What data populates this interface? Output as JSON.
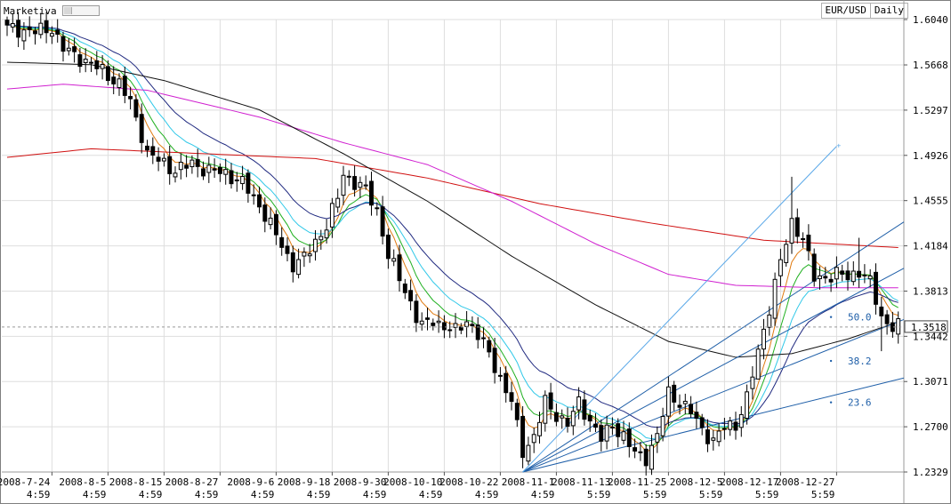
{
  "brand": "Marketiva",
  "header": {
    "symbol": "EUR/USD",
    "timeframe": "Daily"
  },
  "colors": {
    "bg": "#ffffff",
    "grid": "#dedede",
    "candle": "#000000",
    "ma_orange": "#e07a10",
    "ma_green": "#20b020",
    "ma_cyan": "#30c8e8",
    "ma_navy": "#202a80",
    "ma_black": "#111111",
    "ma_magenta": "#d020d0",
    "ma_red": "#d01010",
    "fan": "#1f5fa8",
    "fan_light": "#5aa8e8",
    "price_line": "#999999"
  },
  "chart_data": {
    "type": "candlestick",
    "ylim": [
      1.2329,
      1.604
    ],
    "y_ticks": [
      "1.6040",
      "1.5668",
      "1.5297",
      "1.4926",
      "1.4555",
      "1.4184",
      "1.3813",
      "1.3442",
      "1.3071",
      "1.2700",
      "1.2329"
    ],
    "x_ticks": [
      {
        "date": "2008-7-24",
        "time": "4:59"
      },
      {
        "date": "2008-8-5",
        "time": "4:59"
      },
      {
        "date": "2008-8-15",
        "time": "4:59"
      },
      {
        "date": "2008-8-27",
        "time": "4:59"
      },
      {
        "date": "2008-9-6",
        "time": "4:59"
      },
      {
        "date": "2008-9-18",
        "time": "4:59"
      },
      {
        "date": "2008-9-30",
        "time": "4:59"
      },
      {
        "date": "2008-10-10",
        "time": "4:59"
      },
      {
        "date": "2008-10-22",
        "time": "4:59"
      },
      {
        "date": "2008-11-1",
        "time": "4:59"
      },
      {
        "date": "2008-11-13",
        "time": "5:59"
      },
      {
        "date": "2008-11-25",
        "time": "5:59"
      },
      {
        "date": "2008-12-5",
        "time": "5:59"
      },
      {
        "date": "2008-12-17",
        "time": "5:59"
      },
      {
        "date": "2008-12-27",
        "time": "5:59"
      }
    ],
    "current_price": "1.3518",
    "fib_labels": [
      "50.0",
      "38.2",
      "23.6"
    ],
    "close_anchors": [
      [
        0,
        1.597
      ],
      [
        5,
        1.594
      ],
      [
        8,
        1.597
      ],
      [
        10,
        1.58
      ],
      [
        12,
        1.575
      ],
      [
        14,
        1.57
      ],
      [
        17,
        1.562
      ],
      [
        20,
        1.551
      ],
      [
        22,
        1.536
      ],
      [
        24,
        1.51
      ],
      [
        25,
        1.494
      ],
      [
        28,
        1.486
      ],
      [
        30,
        1.48
      ],
      [
        33,
        1.486
      ],
      [
        36,
        1.48
      ],
      [
        39,
        1.478
      ],
      [
        42,
        1.47
      ],
      [
        45,
        1.452
      ],
      [
        48,
        1.427
      ],
      [
        50,
        1.41
      ],
      [
        51,
        1.403
      ],
      [
        53,
        1.408
      ],
      [
        55,
        1.422
      ],
      [
        57,
        1.435
      ],
      [
        59,
        1.458
      ],
      [
        60,
        1.478
      ],
      [
        62,
        1.47
      ],
      [
        64,
        1.464
      ],
      [
        66,
        1.448
      ],
      [
        68,
        1.41
      ],
      [
        70,
        1.392
      ],
      [
        72,
        1.372
      ],
      [
        73,
        1.36
      ],
      [
        74,
        1.352
      ],
      [
        76,
        1.358
      ],
      [
        78,
        1.352
      ],
      [
        80,
        1.348
      ],
      [
        82,
        1.358
      ],
      [
        84,
        1.345
      ],
      [
        86,
        1.33
      ],
      [
        88,
        1.31
      ],
      [
        90,
        1.29
      ],
      [
        92,
        1.25
      ],
      [
        94,
        1.262
      ],
      [
        96,
        1.29
      ],
      [
        98,
        1.28
      ],
      [
        100,
        1.272
      ],
      [
        102,
        1.29
      ],
      [
        104,
        1.275
      ],
      [
        106,
        1.26
      ],
      [
        108,
        1.272
      ],
      [
        110,
        1.262
      ],
      [
        112,
        1.248
      ],
      [
        114,
        1.245
      ],
      [
        116,
        1.262
      ],
      [
        118,
        1.298
      ],
      [
        120,
        1.29
      ],
      [
        122,
        1.282
      ],
      [
        124,
        1.268
      ],
      [
        126,
        1.258
      ],
      [
        128,
        1.27
      ],
      [
        130,
        1.272
      ],
      [
        132,
        1.293
      ],
      [
        134,
        1.332
      ],
      [
        136,
        1.368
      ],
      [
        138,
        1.405
      ],
      [
        140,
        1.438
      ],
      [
        142,
        1.425
      ],
      [
        144,
        1.392
      ],
      [
        146,
        1.393
      ],
      [
        148,
        1.395
      ],
      [
        150,
        1.393
      ],
      [
        152,
        1.398
      ],
      [
        154,
        1.388
      ],
      [
        156,
        1.36
      ],
      [
        158,
        1.352
      ]
    ],
    "wick_extremes": [
      [
        134,
        1.33
      ],
      [
        140,
        1.475
      ],
      [
        152,
        1.425
      ],
      [
        156,
        1.332
      ]
    ],
    "moving_averages": [
      {
        "color_key": "ma_red",
        "points": [
          [
            0,
            1.491
          ],
          [
            15,
            1.498
          ],
          [
            35,
            1.494
          ],
          [
            55,
            1.49
          ],
          [
            75,
            1.474
          ],
          [
            95,
            1.453
          ],
          [
            115,
            1.437
          ],
          [
            135,
            1.423
          ],
          [
            159,
            1.417
          ]
        ]
      },
      {
        "color_key": "ma_magenta",
        "points": [
          [
            0,
            1.547
          ],
          [
            10,
            1.551
          ],
          [
            25,
            1.546
          ],
          [
            45,
            1.524
          ],
          [
            60,
            1.503
          ],
          [
            75,
            1.485
          ],
          [
            90,
            1.455
          ],
          [
            105,
            1.42
          ],
          [
            118,
            1.395
          ],
          [
            130,
            1.386
          ],
          [
            145,
            1.384
          ],
          [
            159,
            1.384
          ]
        ]
      },
      {
        "color_key": "ma_black",
        "points": [
          [
            0,
            1.569
          ],
          [
            15,
            1.567
          ],
          [
            28,
            1.554
          ],
          [
            45,
            1.53
          ],
          [
            60,
            1.494
          ],
          [
            75,
            1.455
          ],
          [
            90,
            1.41
          ],
          [
            105,
            1.37
          ],
          [
            118,
            1.34
          ],
          [
            130,
            1.327
          ],
          [
            140,
            1.33
          ],
          [
            150,
            1.342
          ],
          [
            159,
            1.356
          ]
        ]
      }
    ]
  }
}
